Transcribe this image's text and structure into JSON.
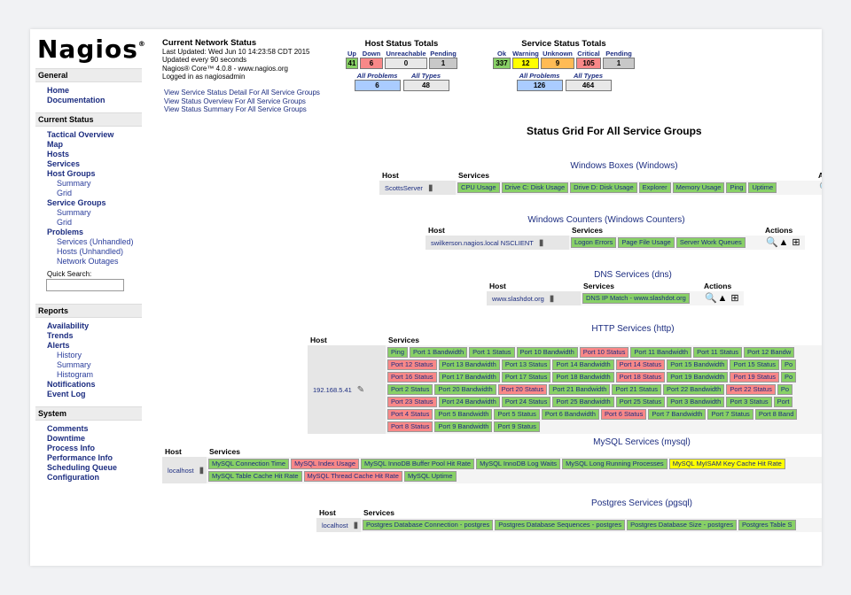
{
  "logo": {
    "text": "Nagios",
    "reg": "®"
  },
  "sidebar": {
    "general": {
      "title": "General",
      "links": [
        "Home",
        "Documentation"
      ]
    },
    "current": {
      "title": "Current Status",
      "links": [
        {
          "label": "Tactical Overview",
          "level": 0
        },
        {
          "label": "Map",
          "level": 0
        },
        {
          "label": "Hosts",
          "level": 0
        },
        {
          "label": "Services",
          "level": 0
        },
        {
          "label": "Host Groups",
          "level": 0
        },
        {
          "label": "Summary",
          "level": 1
        },
        {
          "label": "Grid",
          "level": 1
        },
        {
          "label": "Service Groups",
          "level": 0
        },
        {
          "label": "Summary",
          "level": 1
        },
        {
          "label": "Grid",
          "level": 1
        },
        {
          "label": "Problems",
          "level": 0
        },
        {
          "label": "Services (Unhandled)",
          "level": 1
        },
        {
          "label": "Hosts (Unhandled)",
          "level": 1
        },
        {
          "label": "Network Outages",
          "level": 1
        }
      ],
      "quick_search": "Quick Search:"
    },
    "reports": {
      "title": "Reports",
      "links": [
        {
          "label": "Availability",
          "level": 0
        },
        {
          "label": "Trends",
          "level": 0
        },
        {
          "label": "Alerts",
          "level": 0
        },
        {
          "label": "History",
          "level": 1
        },
        {
          "label": "Summary",
          "level": 1
        },
        {
          "label": "Histogram",
          "level": 1
        },
        {
          "label": "Notifications",
          "level": 0
        },
        {
          "label": "Event Log",
          "level": 0
        }
      ]
    },
    "system": {
      "title": "System",
      "links": [
        "Comments",
        "Downtime",
        "Process Info",
        "Performance Info",
        "Scheduling Queue",
        "Configuration"
      ]
    }
  },
  "net_status": {
    "title": "Current Network Status",
    "lines": [
      "Last Updated: Wed Jun 10 14:23:58 CDT 2015",
      "Updated every 90 seconds",
      "Nagios® Core™ 4.0.8 - www.nagios.org",
      "Logged in as nagiosadmin"
    ],
    "links": [
      "View Service Status Detail For All Service Groups",
      "View Status Overview For All Service Groups",
      "View Status Summary For All Service Groups"
    ]
  },
  "host_totals": {
    "title": "Host Status Totals",
    "cells": [
      {
        "h": "Up",
        "v": "41",
        "c": "#88d066"
      },
      {
        "h": "Down",
        "v": "6",
        "c": "#f88888"
      },
      {
        "h": "Unreachable",
        "v": "0",
        "c": "#e8e8e8"
      },
      {
        "h": "Pending",
        "v": "1",
        "c": "#c8c8c8"
      }
    ],
    "sub": [
      {
        "h": "All Problems",
        "v": "6",
        "c": "#aaccff"
      },
      {
        "h": "All Types",
        "v": "48",
        "c": "#e8e8e8"
      }
    ]
  },
  "service_totals": {
    "title": "Service Status Totals",
    "cells": [
      {
        "h": "Ok",
        "v": "337",
        "c": "#88d066"
      },
      {
        "h": "Warning",
        "v": "12",
        "c": "#ffff00"
      },
      {
        "h": "Unknown",
        "v": "9",
        "c": "#ffbb55"
      },
      {
        "h": "Critical",
        "v": "105",
        "c": "#f88888"
      },
      {
        "h": "Pending",
        "v": "1",
        "c": "#c8c8c8"
      }
    ],
    "sub": [
      {
        "h": "All Problems",
        "v": "126",
        "c": "#aaccff"
      },
      {
        "h": "All Types",
        "v": "464",
        "c": "#e8e8e8"
      }
    ]
  },
  "grid_title": "Status Grid For All Service Groups",
  "labels": {
    "host": "Host",
    "services": "Services",
    "actions": "Actions",
    "actions_cut": "Ac"
  },
  "groups": [
    {
      "title": "Windows Boxes (Windows)",
      "host": "ScottsServer",
      "actions": false,
      "actions_cut": true,
      "services": [
        [
          "CPU Usage",
          "ok"
        ],
        [
          "Drive C: Disk Usage",
          "ok"
        ],
        [
          "Drive D: Disk Usage",
          "ok"
        ],
        [
          "Explorer",
          "ok"
        ],
        [
          "Memory Usage",
          "ok"
        ],
        [
          "Ping",
          "ok"
        ],
        [
          "Uptime",
          "ok"
        ]
      ]
    },
    {
      "title": "Windows Counters (Windows Counters)",
      "host": "swilkerson.nagios.local NSCLIENT",
      "actions": true,
      "services": [
        [
          "Logon Errors",
          "ok"
        ],
        [
          "Page File Usage",
          "ok"
        ],
        [
          "Server Work Queues",
          "ok"
        ]
      ]
    },
    {
      "title": "DNS Services (dns)",
      "host": "www.slashdot.org",
      "actions": true,
      "services": [
        [
          "DNS IP Match - www.slashdot.org",
          "ok"
        ]
      ]
    },
    {
      "title": "HTTP Services (http)",
      "host": "192.168.5.41",
      "actions": false,
      "services": [
        [
          "Ping",
          "ok"
        ],
        [
          "Port 1 Bandwidth",
          "ok"
        ],
        [
          "Port 1 Status",
          "ok"
        ],
        [
          "Port 10 Bandwidth",
          "ok"
        ],
        [
          "Port 10 Status",
          "crit"
        ],
        [
          "Port 11 Bandwidth",
          "ok"
        ],
        [
          "Port 11 Status",
          "ok"
        ],
        [
          "Port 12 Bandw",
          "ok"
        ],
        [
          "Port 12 Status",
          "crit"
        ],
        [
          "Port 13 Bandwidth",
          "ok"
        ],
        [
          "Port 13 Status",
          "ok"
        ],
        [
          "Port 14 Bandwidth",
          "ok"
        ],
        [
          "Port 14 Status",
          "crit"
        ],
        [
          "Port 15 Bandwidth",
          "ok"
        ],
        [
          "Port 15 Status",
          "ok"
        ],
        [
          "Po",
          "ok"
        ],
        [
          "Port 16 Status",
          "crit"
        ],
        [
          "Port 17 Bandwidth",
          "ok"
        ],
        [
          "Port 17 Status",
          "ok"
        ],
        [
          "Port 18 Bandwidth",
          "ok"
        ],
        [
          "Port 18 Status",
          "crit"
        ],
        [
          "Port 19 Bandwidth",
          "ok"
        ],
        [
          "Port 19 Status",
          "crit"
        ],
        [
          "Po",
          "ok"
        ],
        [
          "Port 2 Status",
          "ok"
        ],
        [
          "Port 20 Bandwidth",
          "ok"
        ],
        [
          "Port 20 Status",
          "crit"
        ],
        [
          "Port 21 Bandwidth",
          "ok"
        ],
        [
          "Port 21 Status",
          "ok"
        ],
        [
          "Port 22 Bandwidth",
          "ok"
        ],
        [
          "Port 22 Status",
          "crit"
        ],
        [
          "Po",
          "ok"
        ],
        [
          "Port 23 Status",
          "crit"
        ],
        [
          "Port 24 Bandwidth",
          "ok"
        ],
        [
          "Port 24 Status",
          "ok"
        ],
        [
          "Port 25 Bandwidth",
          "ok"
        ],
        [
          "Port 25 Status",
          "ok"
        ],
        [
          "Port 3 Bandwidth",
          "ok"
        ],
        [
          "Port 3 Status",
          "ok"
        ],
        [
          "Port",
          "ok"
        ],
        [
          "Port 4 Status",
          "crit"
        ],
        [
          "Port 5 Bandwidth",
          "ok"
        ],
        [
          "Port 5 Status",
          "ok"
        ],
        [
          "Port 6 Bandwidth",
          "ok"
        ],
        [
          "Port 6 Status",
          "crit"
        ],
        [
          "Port 7 Bandwidth",
          "ok"
        ],
        [
          "Port 7 Status",
          "ok"
        ],
        [
          "Port 8 Band",
          "ok"
        ],
        [
          "Port 8 Status",
          "crit"
        ],
        [
          "Port 9 Bandwidth",
          "ok"
        ],
        [
          "Port 9 Status",
          "ok"
        ]
      ]
    },
    {
      "title": "MySQL Services (mysql)",
      "host": "localhost",
      "actions": false,
      "services": [
        [
          "MySQL Connection Time",
          "ok"
        ],
        [
          "MySQL Index Usage",
          "crit"
        ],
        [
          "MySQL InnoDB Buffer Pool Hit Rate",
          "ok"
        ],
        [
          "MySQL InnoDB Log Waits",
          "ok"
        ],
        [
          "MySQL Long Running Processes",
          "ok"
        ],
        [
          "MySQL MyISAM Key Cache Hit Rate",
          "warn"
        ],
        [
          "MySQL Table Cache Hit Rate",
          "ok"
        ],
        [
          "MySQL Thread Cache Hit Rate",
          "crit"
        ],
        [
          "MySQL Uptime",
          "ok"
        ]
      ]
    },
    {
      "title": "Postgres Services (pgsql)",
      "host": "localhost",
      "actions": false,
      "services": [
        [
          "Postgres Database Connection - postgres",
          "ok"
        ],
        [
          "Postgres Database Sequences - postgres",
          "ok"
        ],
        [
          "Postgres Database Size - postgres",
          "ok"
        ],
        [
          "Postgres Table S",
          "ok"
        ]
      ]
    }
  ]
}
